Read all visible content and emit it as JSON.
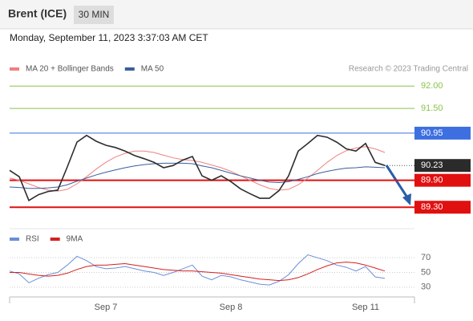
{
  "header": {
    "title": "Brent (ICE)",
    "interval": "30 MIN",
    "timestamp": "Monday, September 11, 2023 3:37:03 AM CET",
    "credit": "Research © 2023 Trading Central"
  },
  "chart_data": [
    {
      "type": "line",
      "series": [
        {
          "name": "MA 20 + Bollinger Bands",
          "color": "#f08080",
          "width": 1,
          "values": [
            89.95,
            89.9,
            89.82,
            89.74,
            89.68,
            89.66,
            89.7,
            89.82,
            89.98,
            90.15,
            90.3,
            90.42,
            90.5,
            90.55,
            90.55,
            90.52,
            90.46,
            90.4,
            90.36,
            90.34,
            90.3,
            90.24,
            90.18,
            90.1,
            90.0,
            89.9,
            89.8,
            89.72,
            89.68,
            89.7,
            89.8,
            89.95,
            90.12,
            90.3,
            90.45,
            90.56,
            90.62,
            90.65,
            90.6,
            90.52
          ]
        },
        {
          "name": "MA 50",
          "color": "#3a5f9a",
          "width": 1,
          "values": [
            89.75,
            89.74,
            89.72,
            89.72,
            89.73,
            89.75,
            89.8,
            89.88,
            89.95,
            90.02,
            90.08,
            90.13,
            90.18,
            90.22,
            90.25,
            90.27,
            90.28,
            90.28,
            90.28,
            90.27,
            90.22,
            90.18,
            90.12,
            90.06,
            90.0,
            89.95,
            89.9,
            89.86,
            89.85,
            89.87,
            89.92,
            89.98,
            90.05,
            90.1,
            90.14,
            90.17,
            90.18,
            90.2,
            90.19,
            90.18
          ]
        },
        {
          "name": "Brent",
          "color": "#2d2d2d",
          "width": 1.6,
          "legend": false,
          "values": [
            90.12,
            89.98,
            89.45,
            89.58,
            89.65,
            89.68,
            90.2,
            90.75,
            90.9,
            90.77,
            90.68,
            90.63,
            90.55,
            90.45,
            90.38,
            90.3,
            90.18,
            90.23,
            90.35,
            90.43,
            90.0,
            89.9,
            90.0,
            89.87,
            89.71,
            89.6,
            89.5,
            89.5,
            89.67,
            90.0,
            90.55,
            90.72,
            90.9,
            90.86,
            90.75,
            90.6,
            90.55,
            90.72,
            90.3,
            90.23
          ]
        }
      ],
      "ylim": [
        89.0,
        92.2
      ],
      "levels": [
        {
          "value": 92,
          "label": "92.00",
          "color": "#8bc34a",
          "boxed": false
        },
        {
          "value": 91.5,
          "label": "91.50",
          "color": "#8bc34a",
          "boxed": false
        },
        {
          "value": 90.95,
          "label": "90.95",
          "color": "#3d6fe0",
          "boxed": true
        },
        {
          "value": 90.23,
          "label": "90.23",
          "color": "#2b2b2b",
          "boxed": true
        },
        {
          "value": 89.9,
          "label": "89.90",
          "color": "#e01010",
          "boxed": true
        },
        {
          "value": 89.3,
          "label": "89.30",
          "color": "#e01010",
          "boxed": true
        }
      ]
    },
    {
      "type": "line",
      "categories": [
        null,
        null,
        null,
        null,
        null,
        null,
        null,
        null,
        null,
        null,
        "Sep 7",
        null,
        null,
        null,
        null,
        null,
        null,
        null,
        null,
        null,
        null,
        null,
        null,
        "Sep 8",
        null,
        null,
        null,
        null,
        null,
        null,
        null,
        null,
        null,
        null,
        null,
        null,
        null,
        "Sep 11",
        null,
        null
      ],
      "series": [
        {
          "name": "RSI",
          "color": "#6b8fd6",
          "width": 1,
          "values": [
            52,
            48,
            36,
            42,
            47,
            50,
            60,
            72,
            66,
            58,
            55,
            56,
            58,
            55,
            52,
            50,
            46,
            50,
            55,
            60,
            45,
            40,
            46,
            44,
            40,
            37,
            34,
            33,
            38,
            47,
            62,
            74,
            70,
            66,
            60,
            57,
            52,
            58,
            44,
            42
          ]
        },
        {
          "name": "9MA",
          "color": "#d42020",
          "width": 1,
          "values": [
            50,
            50,
            48,
            46,
            45,
            46,
            49,
            54,
            58,
            60,
            60,
            61,
            62,
            60,
            58,
            56,
            54,
            53,
            52,
            52,
            51,
            50,
            49,
            47,
            45,
            43,
            41,
            40,
            39,
            40,
            43,
            48,
            54,
            59,
            63,
            64,
            63,
            60,
            56,
            52
          ]
        }
      ],
      "ylim": [
        20,
        80
      ],
      "yticks": [
        30,
        50,
        70
      ],
      "grid": true
    }
  ]
}
